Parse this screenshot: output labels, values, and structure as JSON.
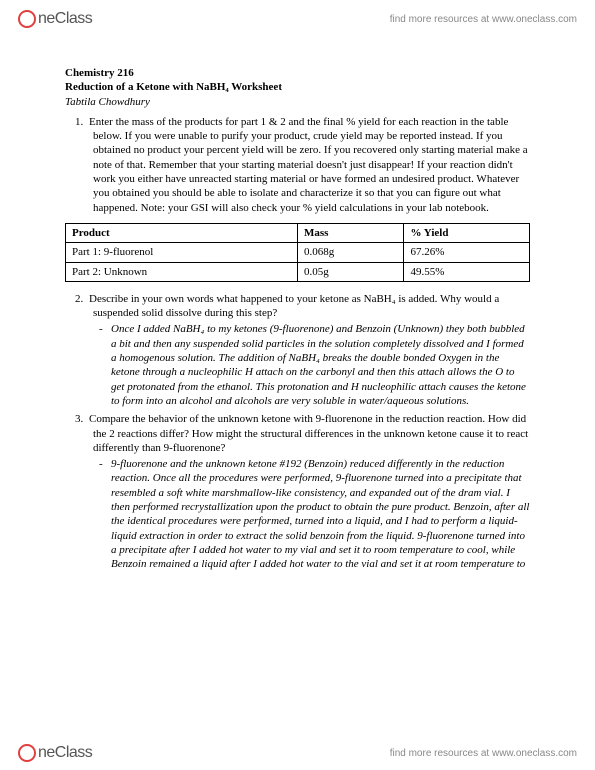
{
  "header": {
    "logo_text": "neClass",
    "link_text": "find more resources at www.oneclass.com"
  },
  "title": {
    "course": "Chemistry 216",
    "worksheet": "Reduction of a Ketone with NaBH₄ Worksheet",
    "author": "Tabtila Chowdhury"
  },
  "q1": {
    "num": "1.",
    "text": "Enter the mass of the products for part 1 & 2 and the final % yield for each reaction in the table below. If you were unable to purify your product, crude yield may be reported instead. If you obtained no product your percent yield will be zero. If you recovered only starting material make a note of that. Remember that your starting material doesn't just disappear! If your reaction didn't work you either have unreacted starting material or have formed an undesired product.  Whatever you obtained you should be able to isolate and characterize it so that you can figure out what happened. Note: your GSI will also check your % yield calculations in your lab notebook."
  },
  "table": {
    "headers": [
      "Product",
      "Mass",
      "% Yield"
    ],
    "rows": [
      [
        "Part 1: 9-fluorenol",
        "0.068g",
        "67.26%"
      ],
      [
        "Part 2: Unknown",
        "0.05g",
        "49.55%"
      ]
    ]
  },
  "q2": {
    "num": "2.",
    "text": "Describe in your own words what happened to your ketone as NaBH₄ is added. Why would a suspended solid dissolve during this step?",
    "answer": "Once I added NaBH₄ to my ketones (9-fluorenone) and Benzoin (Unknown) they both bubbled a bit and then any suspended solid particles in the solution completely dissolved and I formed a homogenous solution. The addition of NaBH₄ breaks the double bonded Oxygen in the ketone through a nucleophilic H attach on the carbonyl and then this attach allows the O to get protonated from the ethanol. This protonation and H nucleophilic attach causes the ketone to form into an alcohol and alcohols are very soluble in water/aqueous solutions."
  },
  "q3": {
    "num": "3.",
    "text": "Compare the behavior of the unknown ketone with 9-fluorenone in the reduction reaction.  How did the 2 reactions differ? How might the structural differences in the unknown ketone cause it to react differently than 9-fluorenone?",
    "answer": "9-fluorenone and the unknown ketone #192 (Benzoin) reduced differently in the reduction reaction. Once all the procedures were performed, 9-fluorenone turned into a precipitate that resembled a soft white marshmallow-like consistency, and expanded out of the dram vial. I then performed recrystallization upon the product to obtain the pure product. Benzoin, after all the identical procedures were performed, turned into a liquid, and I had to perform a liquid-liquid extraction in order to extract the solid benzoin from the liquid. 9-fluorenone turned into a precipitate after I added hot water to my vial and set it to room temperature to cool, while Benzoin remained a liquid after I added hot water to the vial and set it at room temperature to"
  },
  "footer": {
    "logo_text": "neClass",
    "link_text": "find more resources at www.oneclass.com"
  }
}
